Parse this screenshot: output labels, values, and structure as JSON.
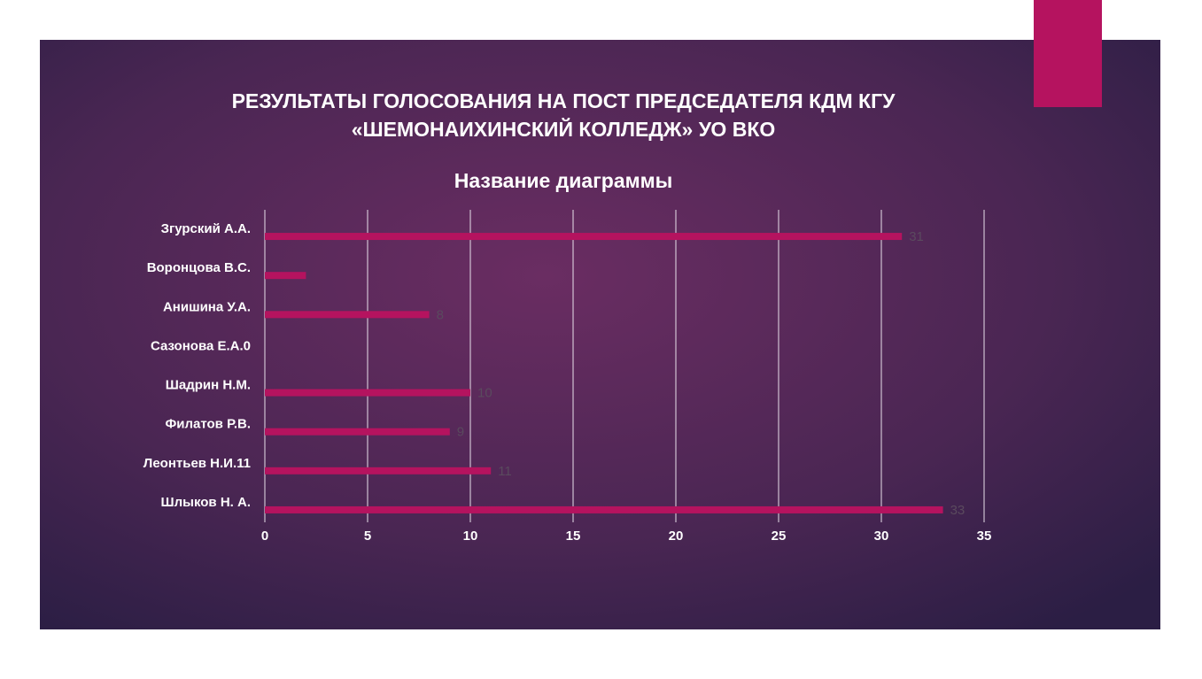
{
  "slide_title": [
    "РЕЗУЛЬТАТЫ ГОЛОСОВАНИЯ НА ПОСТ ПРЕДСЕДАТЕЛЯ КДМ  КГУ",
    "«ШЕМОНАИХИНСКИЙ КОЛЛЕДЖ» УО ВКО"
  ],
  "chart_data": {
    "type": "hbar",
    "title": "Название диаграммы",
    "categories": [
      "Згурский А.А.",
      "Воронцова В.С.",
      "Анишина У.А.",
      "Сазонова Е.А.0",
      "Шадрин Н.М.",
      "Филатов Р.В.",
      "Леонтьев Н.И.11",
      "Шлыков Н. А."
    ],
    "values": [
      31,
      2,
      8,
      0,
      10,
      9,
      11,
      33
    ],
    "value_labels": [
      "31",
      null,
      "8",
      null,
      "10",
      "9",
      "11",
      "33"
    ],
    "color": "#b5135f",
    "xlim": [
      0,
      35
    ],
    "xticks": [
      0,
      5,
      10,
      15,
      20,
      25,
      30,
      35
    ],
    "grid": true
  }
}
